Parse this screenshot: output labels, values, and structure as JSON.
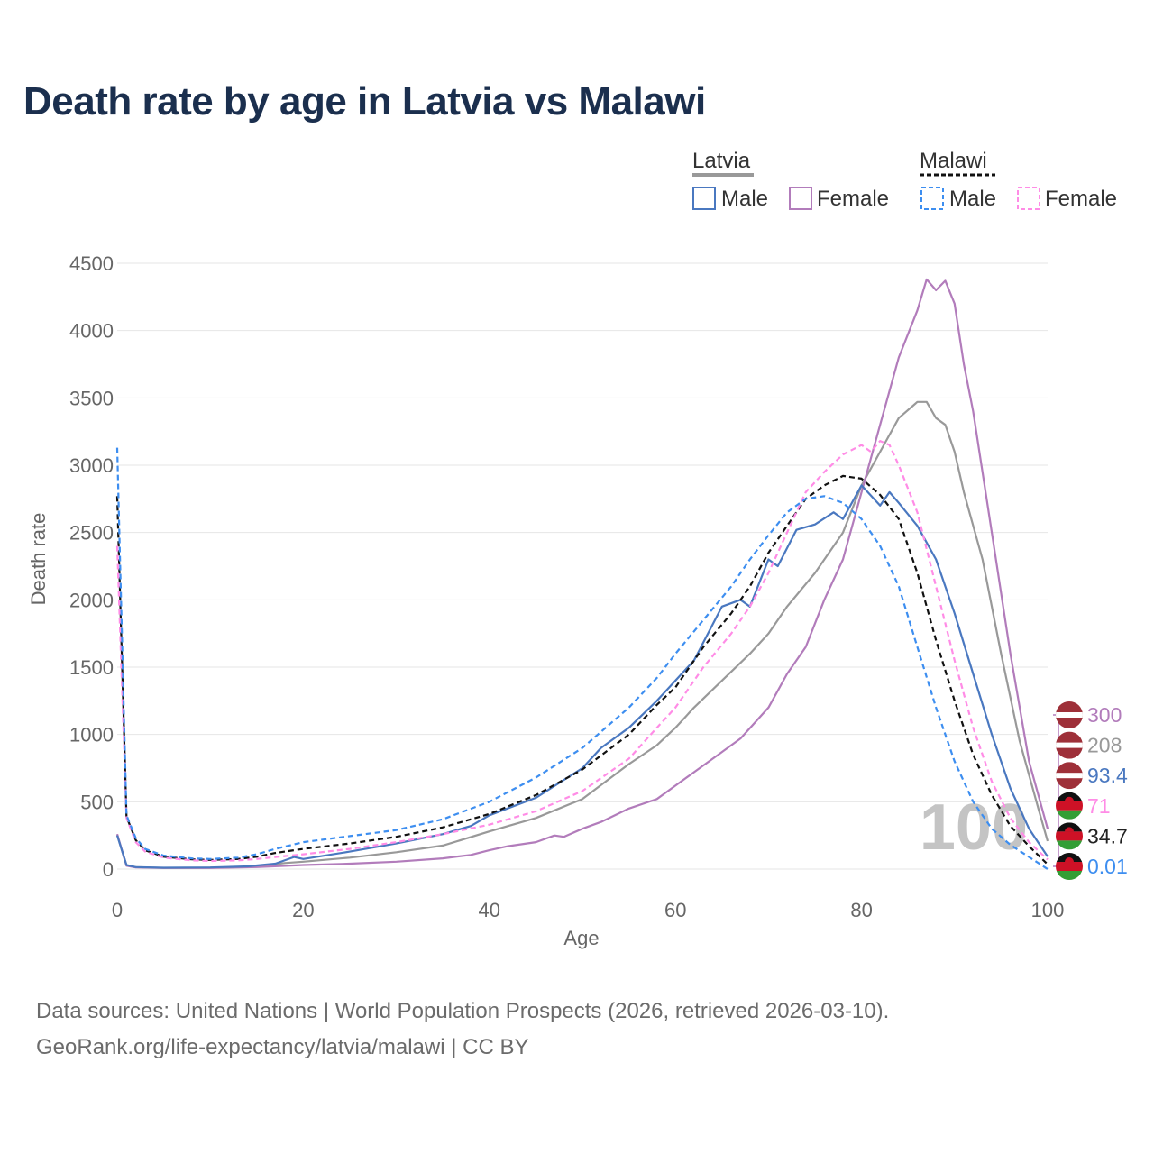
{
  "title": "Death rate by age in Latvia vs Malawi",
  "source_line1": "Data sources: United Nations | World Population Prospects (2026, retrieved 2026-03-10).",
  "source_line2": "GeoRank.org/life-expectancy/latvia/malawi | CC BY",
  "legend": {
    "group1": "Latvia",
    "group2": "Malawi",
    "male": "Male",
    "female": "Female"
  },
  "colors": {
    "latvia_male": "#4a78c0",
    "latvia_female": "#b27cbb",
    "latvia_total": "#999999",
    "malawi_male": "#3d8ef0",
    "malawi_female": "#ff8ce6",
    "malawi_total": "#111111",
    "title": "#1b2f4e",
    "axis_text": "#666666",
    "grid": "#e6e6e6"
  },
  "chart_data": {
    "type": "line",
    "xlabel": "Age",
    "ylabel": "Death rate",
    "xlim": [
      0,
      100
    ],
    "ylim": [
      0,
      4500
    ],
    "x_ticks": [
      0,
      20,
      40,
      60,
      80,
      100
    ],
    "y_ticks": [
      0,
      500,
      1000,
      1500,
      2000,
      2500,
      3000,
      3500,
      4000,
      4500
    ],
    "watermark": "100",
    "series": [
      {
        "name": "Latvia Male",
        "country": "Latvia",
        "sex": "Male",
        "style": "solid",
        "color": "#4a78c0",
        "points": [
          [
            0,
            250
          ],
          [
            1,
            30
          ],
          [
            2,
            15
          ],
          [
            5,
            10
          ],
          [
            10,
            12
          ],
          [
            14,
            20
          ],
          [
            17,
            40
          ],
          [
            19,
            90
          ],
          [
            20,
            75
          ],
          [
            25,
            130
          ],
          [
            30,
            190
          ],
          [
            35,
            260
          ],
          [
            38,
            320
          ],
          [
            40,
            400
          ],
          [
            45,
            530
          ],
          [
            50,
            750
          ],
          [
            52,
            900
          ],
          [
            55,
            1050
          ],
          [
            58,
            1250
          ],
          [
            60,
            1400
          ],
          [
            62,
            1550
          ],
          [
            65,
            1950
          ],
          [
            67,
            2000
          ],
          [
            68,
            1950
          ],
          [
            70,
            2300
          ],
          [
            71,
            2250
          ],
          [
            73,
            2520
          ],
          [
            75,
            2560
          ],
          [
            77,
            2650
          ],
          [
            78,
            2600
          ],
          [
            80,
            2850
          ],
          [
            82,
            2700
          ],
          [
            83,
            2800
          ],
          [
            84,
            2720
          ],
          [
            86,
            2550
          ],
          [
            88,
            2300
          ],
          [
            90,
            1900
          ],
          [
            92,
            1450
          ],
          [
            94,
            1000
          ],
          [
            96,
            600
          ],
          [
            98,
            300
          ],
          [
            100,
            93.4
          ]
        ],
        "end_label": "93.4",
        "end_flag": "latvia"
      },
      {
        "name": "Latvia Female",
        "country": "Latvia",
        "sex": "Female",
        "style": "solid",
        "color": "#b27cbb",
        "points": [
          [
            0,
            260
          ],
          [
            1,
            25
          ],
          [
            2,
            12
          ],
          [
            5,
            8
          ],
          [
            10,
            8
          ],
          [
            15,
            15
          ],
          [
            20,
            30
          ],
          [
            25,
            40
          ],
          [
            30,
            55
          ],
          [
            35,
            80
          ],
          [
            38,
            105
          ],
          [
            40,
            140
          ],
          [
            42,
            170
          ],
          [
            45,
            200
          ],
          [
            47,
            250
          ],
          [
            48,
            240
          ],
          [
            50,
            300
          ],
          [
            52,
            350
          ],
          [
            55,
            450
          ],
          [
            58,
            520
          ],
          [
            60,
            620
          ],
          [
            62,
            720
          ],
          [
            65,
            870
          ],
          [
            67,
            970
          ],
          [
            70,
            1200
          ],
          [
            72,
            1450
          ],
          [
            74,
            1650
          ],
          [
            76,
            2000
          ],
          [
            78,
            2300
          ],
          [
            80,
            2800
          ],
          [
            82,
            3300
          ],
          [
            84,
            3800
          ],
          [
            86,
            4150
          ],
          [
            87,
            4380
          ],
          [
            88,
            4300
          ],
          [
            89,
            4370
          ],
          [
            90,
            4200
          ],
          [
            91,
            3750
          ],
          [
            92,
            3400
          ],
          [
            94,
            2500
          ],
          [
            96,
            1600
          ],
          [
            98,
            800
          ],
          [
            100,
            300
          ]
        ],
        "end_label": "300",
        "end_flag": "latvia"
      },
      {
        "name": "Latvia Total",
        "country": "Latvia",
        "sex": "Total",
        "style": "solid",
        "color": "#999999",
        "points": [
          [
            0,
            255
          ],
          [
            1,
            28
          ],
          [
            2,
            14
          ],
          [
            5,
            9
          ],
          [
            10,
            10
          ],
          [
            15,
            18
          ],
          [
            18,
            45
          ],
          [
            20,
            55
          ],
          [
            25,
            85
          ],
          [
            30,
            125
          ],
          [
            35,
            175
          ],
          [
            40,
            280
          ],
          [
            45,
            380
          ],
          [
            50,
            520
          ],
          [
            55,
            780
          ],
          [
            58,
            920
          ],
          [
            60,
            1050
          ],
          [
            62,
            1200
          ],
          [
            65,
            1400
          ],
          [
            68,
            1600
          ],
          [
            70,
            1750
          ],
          [
            72,
            1950
          ],
          [
            75,
            2200
          ],
          [
            78,
            2500
          ],
          [
            80,
            2850
          ],
          [
            82,
            3100
          ],
          [
            84,
            3350
          ],
          [
            86,
            3470
          ],
          [
            87,
            3470
          ],
          [
            88,
            3350
          ],
          [
            89,
            3300
          ],
          [
            90,
            3100
          ],
          [
            91,
            2800
          ],
          [
            93,
            2300
          ],
          [
            95,
            1600
          ],
          [
            97,
            950
          ],
          [
            99,
            450
          ],
          [
            100,
            208
          ]
        ],
        "end_label": "208",
        "end_flag": "latvia"
      },
      {
        "name": "Malawi Male",
        "country": "Malawi",
        "sex": "Male",
        "style": "dashed",
        "color": "#3d8ef0",
        "points": [
          [
            0,
            3130
          ],
          [
            1,
            400
          ],
          [
            2,
            230
          ],
          [
            3,
            150
          ],
          [
            5,
            100
          ],
          [
            8,
            80
          ],
          [
            10,
            75
          ],
          [
            13,
            85
          ],
          [
            15,
            110
          ],
          [
            17,
            150
          ],
          [
            20,
            200
          ],
          [
            25,
            245
          ],
          [
            30,
            290
          ],
          [
            35,
            370
          ],
          [
            40,
            500
          ],
          [
            45,
            680
          ],
          [
            50,
            900
          ],
          [
            55,
            1200
          ],
          [
            58,
            1420
          ],
          [
            60,
            1600
          ],
          [
            63,
            1850
          ],
          [
            66,
            2100
          ],
          [
            68,
            2300
          ],
          [
            70,
            2480
          ],
          [
            72,
            2650
          ],
          [
            74,
            2750
          ],
          [
            76,
            2770
          ],
          [
            78,
            2720
          ],
          [
            80,
            2600
          ],
          [
            82,
            2400
          ],
          [
            84,
            2100
          ],
          [
            86,
            1650
          ],
          [
            88,
            1200
          ],
          [
            90,
            800
          ],
          [
            92,
            500
          ],
          [
            94,
            300
          ],
          [
            96,
            180
          ],
          [
            98,
            90
          ],
          [
            100,
            0.01
          ]
        ],
        "end_label": "0.01",
        "end_flag": "malawi"
      },
      {
        "name": "Malawi Female",
        "country": "Malawi",
        "sex": "Female",
        "style": "dashed",
        "color": "#ff8ce6",
        "points": [
          [
            0,
            2400
          ],
          [
            1,
            380
          ],
          [
            2,
            200
          ],
          [
            3,
            130
          ],
          [
            5,
            85
          ],
          [
            8,
            65
          ],
          [
            10,
            60
          ],
          [
            13,
            65
          ],
          [
            15,
            75
          ],
          [
            17,
            90
          ],
          [
            20,
            110
          ],
          [
            25,
            150
          ],
          [
            30,
            200
          ],
          [
            35,
            260
          ],
          [
            40,
            330
          ],
          [
            45,
            430
          ],
          [
            50,
            580
          ],
          [
            55,
            820
          ],
          [
            58,
            1050
          ],
          [
            60,
            1200
          ],
          [
            63,
            1500
          ],
          [
            66,
            1750
          ],
          [
            68,
            1950
          ],
          [
            70,
            2200
          ],
          [
            72,
            2500
          ],
          [
            74,
            2800
          ],
          [
            76,
            2950
          ],
          [
            78,
            3080
          ],
          [
            80,
            3150
          ],
          [
            81,
            3100
          ],
          [
            82,
            3180
          ],
          [
            83,
            3150
          ],
          [
            84,
            3000
          ],
          [
            86,
            2650
          ],
          [
            88,
            2100
          ],
          [
            90,
            1550
          ],
          [
            92,
            1050
          ],
          [
            94,
            650
          ],
          [
            96,
            380
          ],
          [
            98,
            200
          ],
          [
            100,
            71
          ]
        ],
        "end_label": "71",
        "end_flag": "malawi"
      },
      {
        "name": "Malawi Total",
        "country": "Malawi",
        "sex": "Total",
        "style": "dashed",
        "color": "#111111",
        "points": [
          [
            0,
            2770
          ],
          [
            1,
            390
          ],
          [
            2,
            215
          ],
          [
            3,
            140
          ],
          [
            5,
            92
          ],
          [
            8,
            72
          ],
          [
            10,
            68
          ],
          [
            13,
            75
          ],
          [
            15,
            92
          ],
          [
            17,
            120
          ],
          [
            20,
            150
          ],
          [
            25,
            190
          ],
          [
            30,
            240
          ],
          [
            35,
            310
          ],
          [
            40,
            410
          ],
          [
            45,
            550
          ],
          [
            50,
            740
          ],
          [
            55,
            1000
          ],
          [
            58,
            1220
          ],
          [
            60,
            1350
          ],
          [
            63,
            1650
          ],
          [
            66,
            1900
          ],
          [
            68,
            2100
          ],
          [
            70,
            2350
          ],
          [
            72,
            2550
          ],
          [
            74,
            2750
          ],
          [
            76,
            2850
          ],
          [
            78,
            2920
          ],
          [
            80,
            2900
          ],
          [
            82,
            2780
          ],
          [
            84,
            2600
          ],
          [
            86,
            2200
          ],
          [
            88,
            1700
          ],
          [
            90,
            1250
          ],
          [
            92,
            850
          ],
          [
            94,
            550
          ],
          [
            96,
            320
          ],
          [
            98,
            170
          ],
          [
            100,
            34.7
          ]
        ],
        "end_label": "34.7",
        "end_flag": "malawi"
      }
    ]
  }
}
